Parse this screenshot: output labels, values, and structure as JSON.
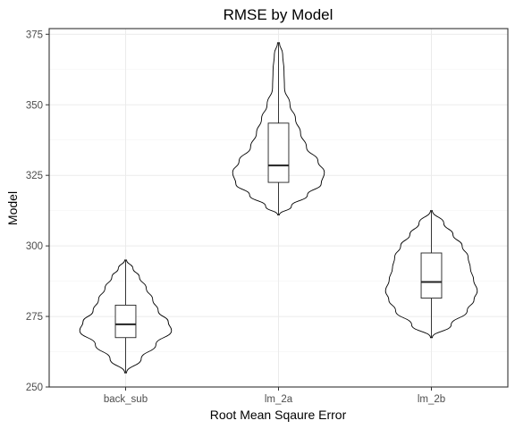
{
  "chart_data": {
    "type": "violin",
    "title": "RMSE by Model",
    "xlabel": "Root Mean Sqaure Error",
    "ylabel": "Model",
    "ylim": [
      250,
      377
    ],
    "yticks": [
      250,
      275,
      300,
      325,
      350,
      375
    ],
    "categories": [
      "back_sub",
      "lm_2a",
      "lm_2b"
    ],
    "grid": true,
    "legend": "none",
    "series": [
      {
        "category": "back_sub",
        "min": 255,
        "q1": 267.5,
        "median": 272.2,
        "q3": 279,
        "max": 295,
        "density": [
          [
            255,
            0.02
          ],
          [
            260,
            0.34
          ],
          [
            265,
            0.66
          ],
          [
            270,
            1.0
          ],
          [
            273,
            0.93
          ],
          [
            277,
            0.71
          ],
          [
            281,
            0.59
          ],
          [
            285,
            0.45
          ],
          [
            289,
            0.3
          ],
          [
            292,
            0.16
          ],
          [
            295,
            0.02
          ]
        ]
      },
      {
        "category": "lm_2a",
        "min": 311,
        "q1": 322.5,
        "median": 328.5,
        "q3": 343.5,
        "max": 372,
        "density": [
          [
            311,
            0.02
          ],
          [
            314,
            0.28
          ],
          [
            318,
            0.63
          ],
          [
            322,
            0.93
          ],
          [
            326,
            1.0
          ],
          [
            330,
            0.86
          ],
          [
            335,
            0.61
          ],
          [
            340,
            0.48
          ],
          [
            345,
            0.37
          ],
          [
            350,
            0.25
          ],
          [
            356,
            0.13
          ],
          [
            362,
            0.12
          ],
          [
            368,
            0.09
          ],
          [
            372,
            0.02
          ]
        ]
      },
      {
        "category": "lm_2b",
        "min": 267.5,
        "q1": 281.5,
        "median": 287.2,
        "q3": 297.5,
        "max": 312.5,
        "density": [
          [
            267.5,
            0.02
          ],
          [
            272,
            0.43
          ],
          [
            277,
            0.78
          ],
          [
            281,
            0.93
          ],
          [
            284,
            1.0
          ],
          [
            288,
            0.92
          ],
          [
            292,
            0.85
          ],
          [
            296,
            0.8
          ],
          [
            300,
            0.67
          ],
          [
            304,
            0.47
          ],
          [
            308,
            0.27
          ],
          [
            312.5,
            0.02
          ]
        ]
      }
    ]
  }
}
